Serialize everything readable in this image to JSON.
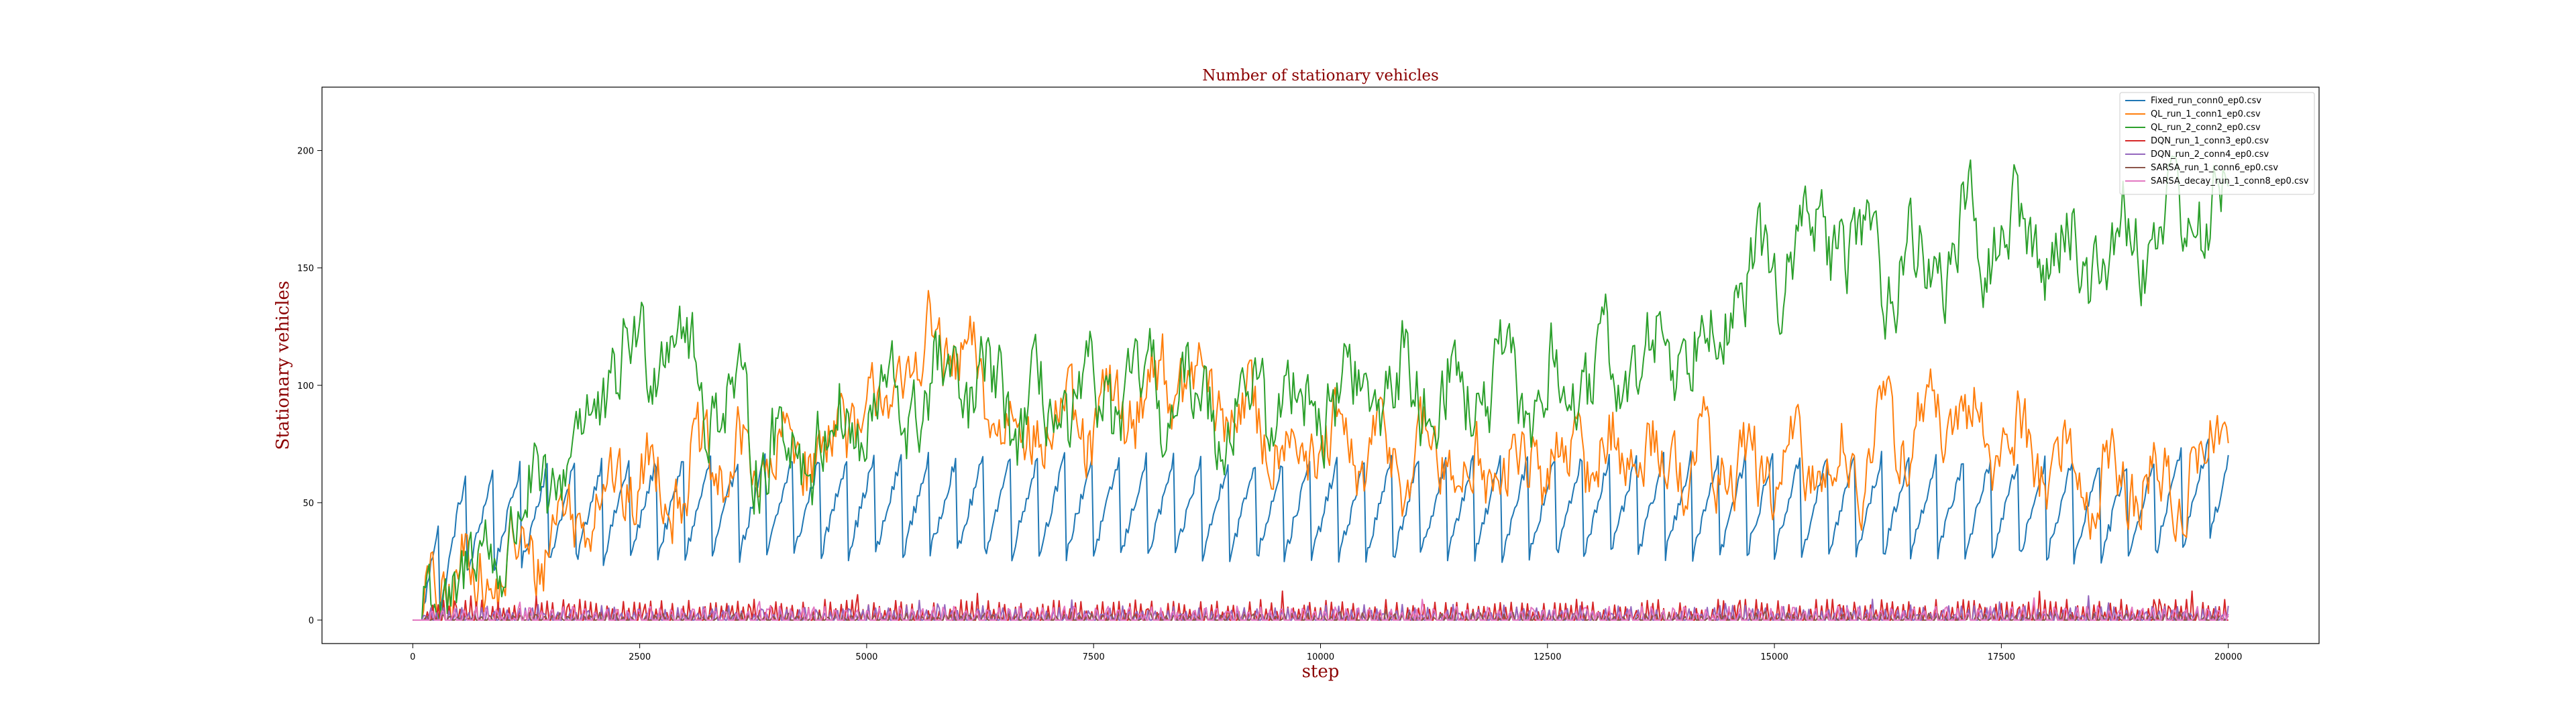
{
  "chart_data": {
    "type": "line",
    "title": "Number of stationary vehicles",
    "xlabel": "step",
    "ylabel": "Stationary vehicles",
    "xlim": [
      -1000,
      21000
    ],
    "ylim": [
      -10,
      227
    ],
    "xticks": [
      0,
      2500,
      5000,
      7500,
      10000,
      12500,
      15000,
      17500,
      20000
    ],
    "yticks": [
      0,
      50,
      100,
      150,
      200
    ],
    "grid": false,
    "legend_position": "top-right",
    "series": [
      {
        "name": "Fixed_run_conn0_ep0.csv",
        "color": "#1f77b4",
        "amplitude": 22,
        "period": 300,
        "pattern": "sawtooth",
        "points": [
          {
            "x": 0,
            "y": 0
          },
          {
            "x": 500,
            "y": 40
          },
          {
            "x": 1000,
            "y": 45
          },
          {
            "x": 2000,
            "y": 48
          },
          {
            "x": 4000,
            "y": 50
          },
          {
            "x": 7000,
            "y": 50
          },
          {
            "x": 10000,
            "y": 48
          },
          {
            "x": 13000,
            "y": 50
          },
          {
            "x": 16000,
            "y": 50
          },
          {
            "x": 19000,
            "y": 48
          },
          {
            "x": 20000,
            "y": 60
          }
        ]
      },
      {
        "name": "QL_run_1_conn1_ep0.csv",
        "color": "#ff7f0e",
        "amplitude": 30,
        "period": 80,
        "pattern": "noise",
        "points": [
          {
            "x": 0,
            "y": 0
          },
          {
            "x": 500,
            "y": 20
          },
          {
            "x": 1000,
            "y": 18
          },
          {
            "x": 1500,
            "y": 35
          },
          {
            "x": 2000,
            "y": 55
          },
          {
            "x": 3000,
            "y": 62
          },
          {
            "x": 4000,
            "y": 68
          },
          {
            "x": 5000,
            "y": 85
          },
          {
            "x": 5800,
            "y": 120
          },
          {
            "x": 6500,
            "y": 85
          },
          {
            "x": 7500,
            "y": 80
          },
          {
            "x": 8300,
            "y": 105
          },
          {
            "x": 9000,
            "y": 90
          },
          {
            "x": 10000,
            "y": 70
          },
          {
            "x": 11000,
            "y": 70
          },
          {
            "x": 12000,
            "y": 62
          },
          {
            "x": 13000,
            "y": 72
          },
          {
            "x": 14000,
            "y": 70
          },
          {
            "x": 15000,
            "y": 62
          },
          {
            "x": 16000,
            "y": 70
          },
          {
            "x": 16600,
            "y": 85
          },
          {
            "x": 17500,
            "y": 78
          },
          {
            "x": 18500,
            "y": 60
          },
          {
            "x": 19500,
            "y": 55
          },
          {
            "x": 20000,
            "y": 88
          }
        ]
      },
      {
        "name": "QL_run_2_conn2_ep0.csv",
        "color": "#2ca02c",
        "amplitude": 34,
        "period": 90,
        "pattern": "noise",
        "points": [
          {
            "x": 0,
            "y": 0
          },
          {
            "x": 500,
            "y": 15
          },
          {
            "x": 1000,
            "y": 35
          },
          {
            "x": 1500,
            "y": 55
          },
          {
            "x": 2000,
            "y": 90
          },
          {
            "x": 2800,
            "y": 130
          },
          {
            "x": 3200,
            "y": 100
          },
          {
            "x": 4000,
            "y": 72
          },
          {
            "x": 5000,
            "y": 85
          },
          {
            "x": 6000,
            "y": 100
          },
          {
            "x": 7000,
            "y": 85
          },
          {
            "x": 8000,
            "y": 95
          },
          {
            "x": 9000,
            "y": 92
          },
          {
            "x": 10000,
            "y": 95
          },
          {
            "x": 11000,
            "y": 100
          },
          {
            "x": 12000,
            "y": 95
          },
          {
            "x": 13000,
            "y": 100
          },
          {
            "x": 14000,
            "y": 120
          },
          {
            "x": 15500,
            "y": 165
          },
          {
            "x": 16500,
            "y": 150
          },
          {
            "x": 17500,
            "y": 165
          },
          {
            "x": 18500,
            "y": 155
          },
          {
            "x": 19500,
            "y": 175
          },
          {
            "x": 20000,
            "y": 170
          }
        ]
      },
      {
        "name": "DQN_run_1_conn3_ep0.csv",
        "color": "#d62728",
        "amplitude": 7,
        "period": 30,
        "pattern": "spikes",
        "points": [
          {
            "x": 0,
            "y": 0
          },
          {
            "x": 200,
            "y": 6
          },
          {
            "x": 20000,
            "y": 6
          }
        ]
      },
      {
        "name": "DQN_run_2_conn4_ep0.csv",
        "color": "#9467bd",
        "amplitude": 5,
        "period": 28,
        "pattern": "spikes",
        "points": [
          {
            "x": 0,
            "y": 0
          },
          {
            "x": 200,
            "y": 4
          },
          {
            "x": 20000,
            "y": 4
          }
        ]
      },
      {
        "name": "SARSA_run_1_conn6_ep0.csv",
        "color": "#8c564b",
        "amplitude": 3,
        "period": 26,
        "pattern": "spikes",
        "points": [
          {
            "x": 0,
            "y": 0
          },
          {
            "x": 200,
            "y": 2
          },
          {
            "x": 20000,
            "y": 2
          }
        ]
      },
      {
        "name": "SARSA_decay_run_1_conn8_ep0.csv",
        "color": "#e377c2",
        "amplitude": 5,
        "period": 24,
        "pattern": "spikes",
        "points": [
          {
            "x": 0,
            "y": 0
          },
          {
            "x": 200,
            "y": 4
          },
          {
            "x": 20000,
            "y": 4
          }
        ]
      }
    ]
  }
}
